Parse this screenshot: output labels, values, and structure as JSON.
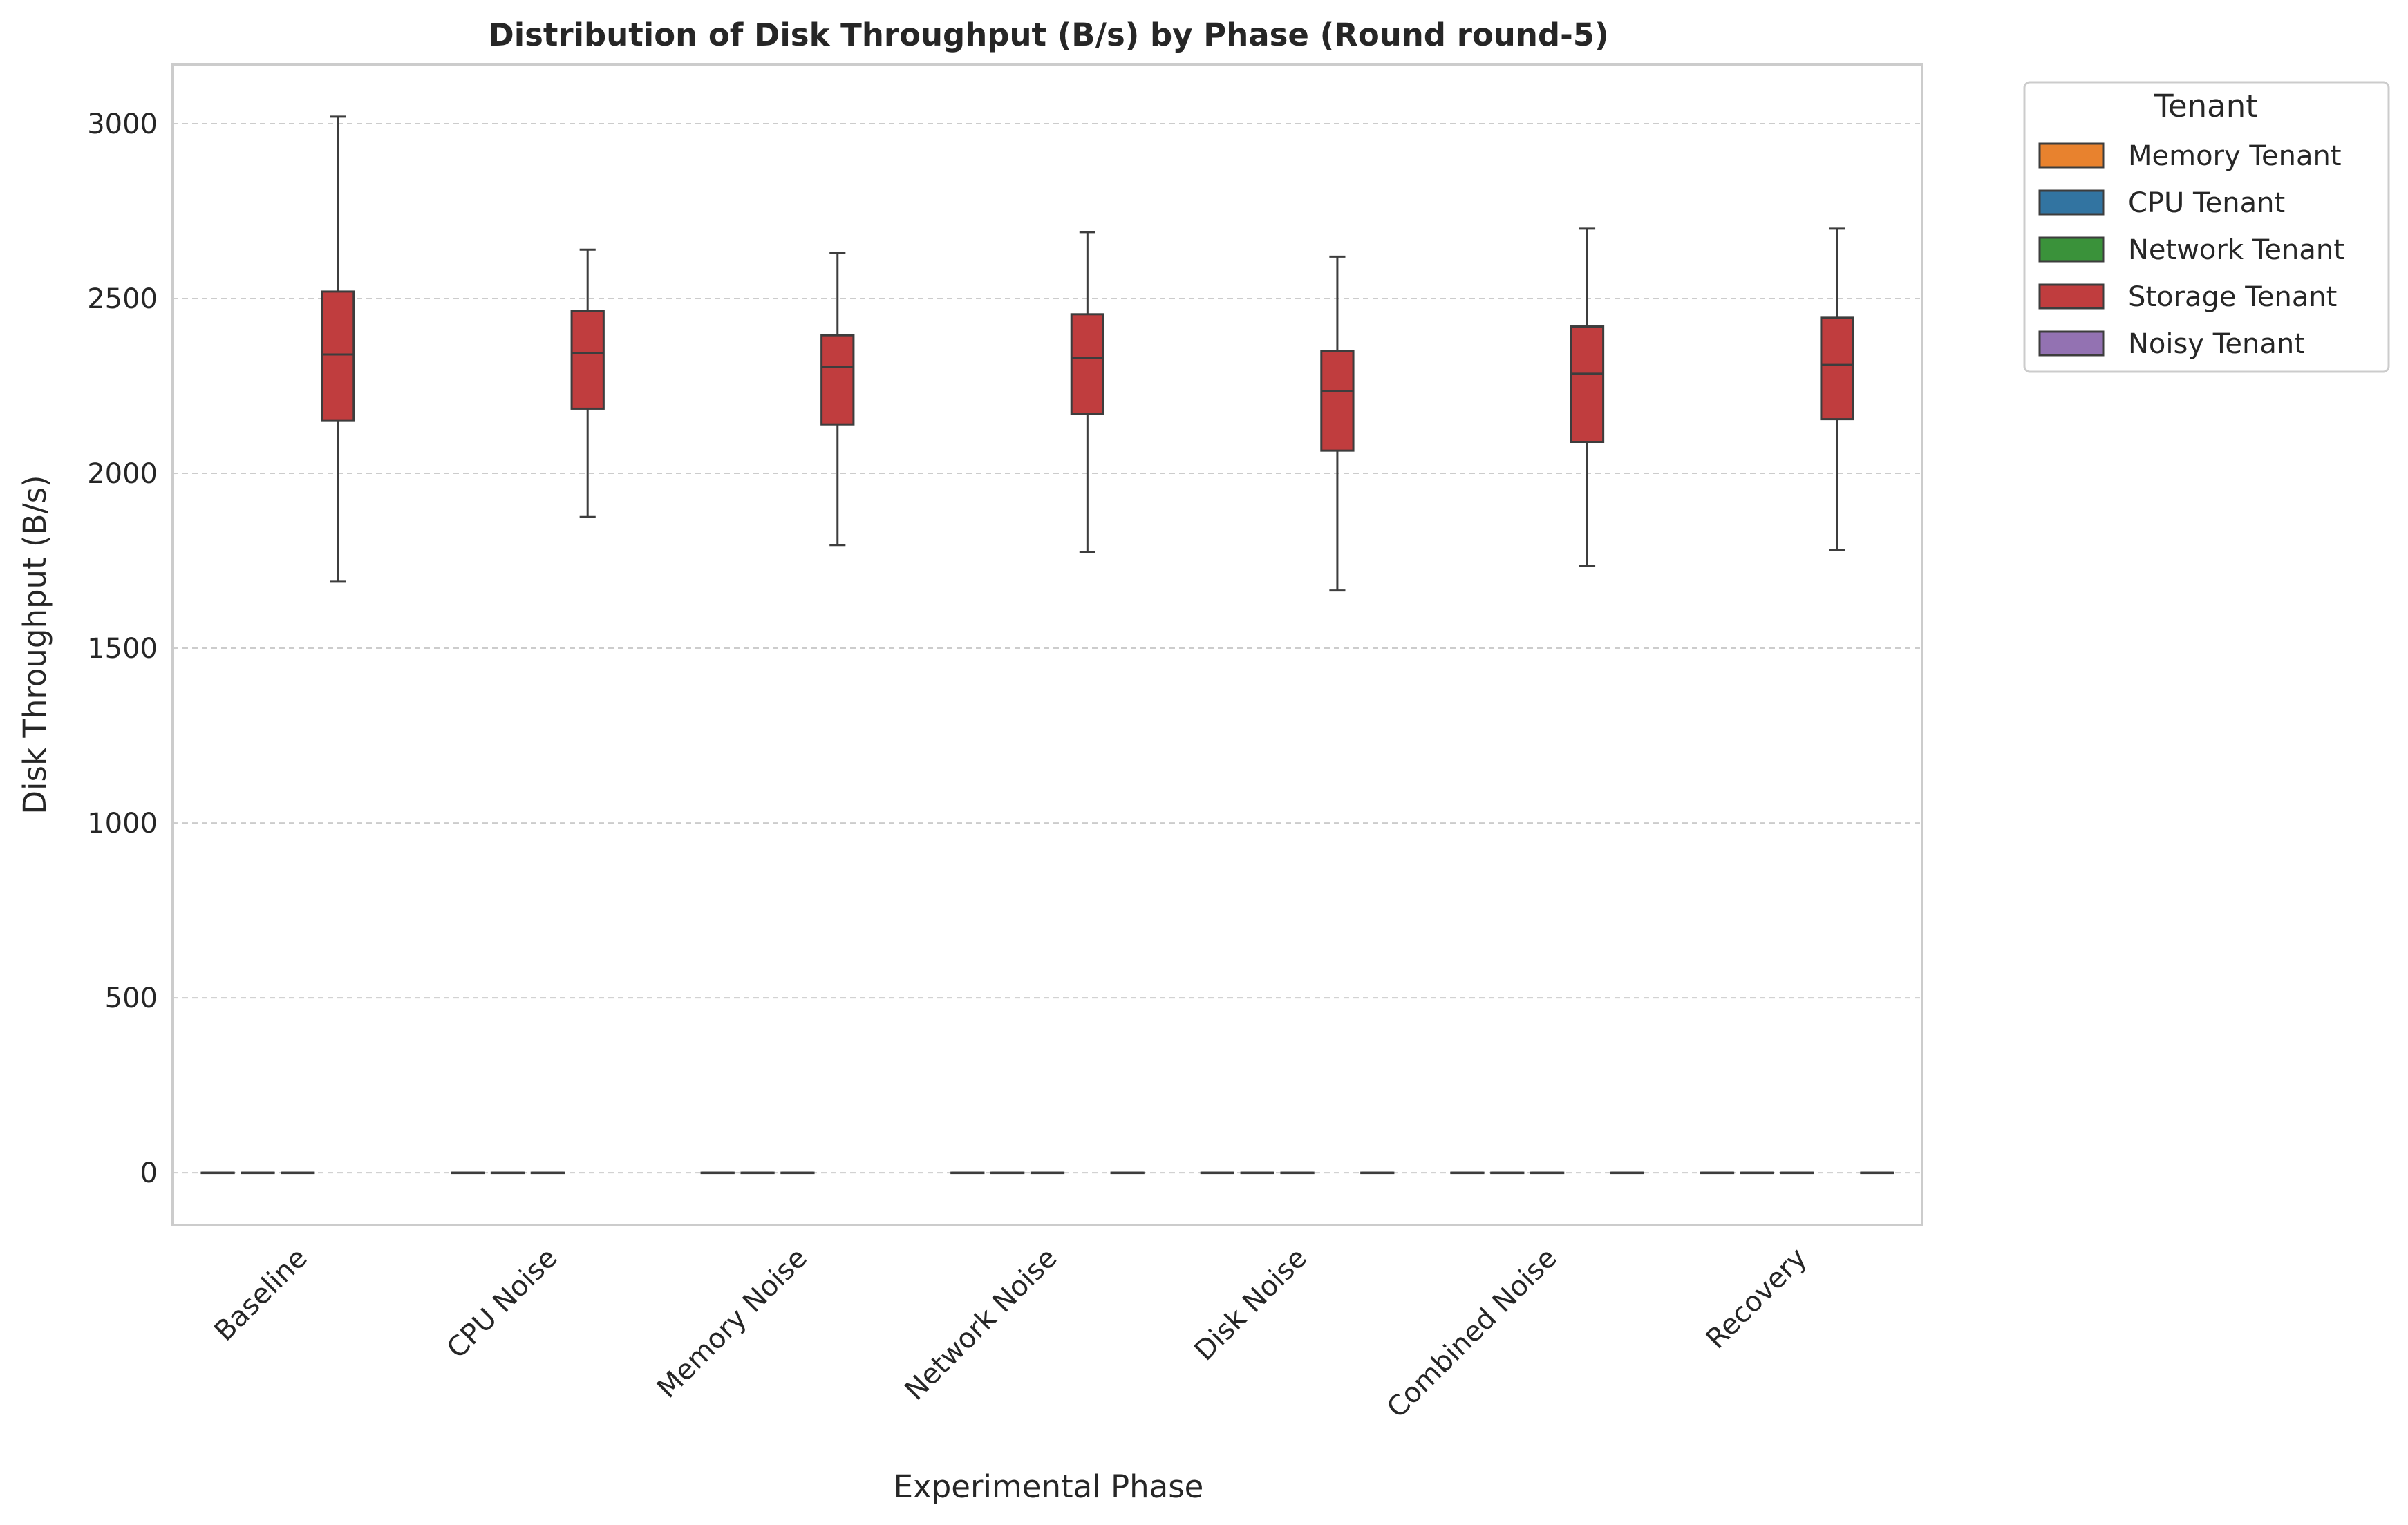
{
  "chart_data": {
    "type": "box",
    "title": "Distribution of Disk Throughput (B/s) by Phase (Round round-5)",
    "xlabel": "Experimental Phase",
    "ylabel": "Disk Throughput (B/s)",
    "ylim": [
      -150,
      3170
    ],
    "yticks": [
      0,
      500,
      1000,
      1500,
      2000,
      2500,
      3000
    ],
    "grid": "horizontal dashed",
    "categories": [
      "Baseline",
      "CPU Noise",
      "Memory Noise",
      "Network Noise",
      "Disk Noise",
      "Combined Noise",
      "Recovery"
    ],
    "legend": {
      "title": "Tenant",
      "placement": "outside upper-right"
    },
    "series": [
      {
        "name": "Memory Tenant",
        "color": "#e8822e",
        "boxes": [
          {
            "min": 0,
            "q1": 0,
            "median": 0,
            "q3": 0,
            "max": 0
          },
          {
            "min": 0,
            "q1": 0,
            "median": 0,
            "q3": 0,
            "max": 0
          },
          {
            "min": 0,
            "q1": 0,
            "median": 0,
            "q3": 0,
            "max": 0
          },
          {
            "min": 0,
            "q1": 0,
            "median": 0,
            "q3": 0,
            "max": 0
          },
          {
            "min": 0,
            "q1": 0,
            "median": 0,
            "q3": 0,
            "max": 0
          },
          {
            "min": 0,
            "q1": 0,
            "median": 0,
            "q3": 0,
            "max": 0
          },
          {
            "min": 0,
            "q1": 0,
            "median": 0,
            "q3": 0,
            "max": 0
          }
        ]
      },
      {
        "name": "CPU Tenant",
        "color": "#3274a1",
        "boxes": [
          {
            "min": 0,
            "q1": 0,
            "median": 0,
            "q3": 0,
            "max": 0
          },
          {
            "min": 0,
            "q1": 0,
            "median": 0,
            "q3": 0,
            "max": 0
          },
          {
            "min": 0,
            "q1": 0,
            "median": 0,
            "q3": 0,
            "max": 0
          },
          {
            "min": 0,
            "q1": 0,
            "median": 0,
            "q3": 0,
            "max": 0
          },
          {
            "min": 0,
            "q1": 0,
            "median": 0,
            "q3": 0,
            "max": 0
          },
          {
            "min": 0,
            "q1": 0,
            "median": 0,
            "q3": 0,
            "max": 0
          },
          {
            "min": 0,
            "q1": 0,
            "median": 0,
            "q3": 0,
            "max": 0
          }
        ]
      },
      {
        "name": "Network Tenant",
        "color": "#3a923a",
        "boxes": [
          {
            "min": 0,
            "q1": 0,
            "median": 0,
            "q3": 0,
            "max": 0
          },
          {
            "min": 0,
            "q1": 0,
            "median": 0,
            "q3": 0,
            "max": 0
          },
          {
            "min": 0,
            "q1": 0,
            "median": 0,
            "q3": 0,
            "max": 0
          },
          {
            "min": 0,
            "q1": 0,
            "median": 0,
            "q3": 0,
            "max": 0
          },
          {
            "min": 0,
            "q1": 0,
            "median": 0,
            "q3": 0,
            "max": 0
          },
          {
            "min": 0,
            "q1": 0,
            "median": 0,
            "q3": 0,
            "max": 0
          },
          {
            "min": 0,
            "q1": 0,
            "median": 0,
            "q3": 0,
            "max": 0
          }
        ]
      },
      {
        "name": "Storage Tenant",
        "color": "#c03d3e",
        "boxes": [
          {
            "min": 1690,
            "q1": 2150,
            "median": 2340,
            "q3": 2520,
            "max": 3020
          },
          {
            "min": 1875,
            "q1": 2185,
            "median": 2345,
            "q3": 2465,
            "max": 2640
          },
          {
            "min": 1795,
            "q1": 2140,
            "median": 2305,
            "q3": 2395,
            "max": 2630
          },
          {
            "min": 1775,
            "q1": 2170,
            "median": 2330,
            "q3": 2455,
            "max": 2690
          },
          {
            "min": 1665,
            "q1": 2065,
            "median": 2235,
            "q3": 2350,
            "max": 2620
          },
          {
            "min": 1735,
            "q1": 2090,
            "median": 2285,
            "q3": 2420,
            "max": 2700
          },
          {
            "min": 1780,
            "q1": 2155,
            "median": 2310,
            "q3": 2445,
            "max": 2700
          }
        ]
      },
      {
        "name": "Noisy Tenant",
        "color": "#9372b2",
        "boxes": [
          null,
          null,
          null,
          {
            "min": 0,
            "q1": 0,
            "median": 0,
            "q3": 0,
            "max": 0
          },
          {
            "min": 0,
            "q1": 0,
            "median": 0,
            "q3": 0,
            "max": 0
          },
          {
            "min": 0,
            "q1": 0,
            "median": 0,
            "q3": 0,
            "max": 0
          },
          {
            "min": 0,
            "q1": 0,
            "median": 0,
            "q3": 0,
            "max": 0
          }
        ]
      }
    ]
  }
}
